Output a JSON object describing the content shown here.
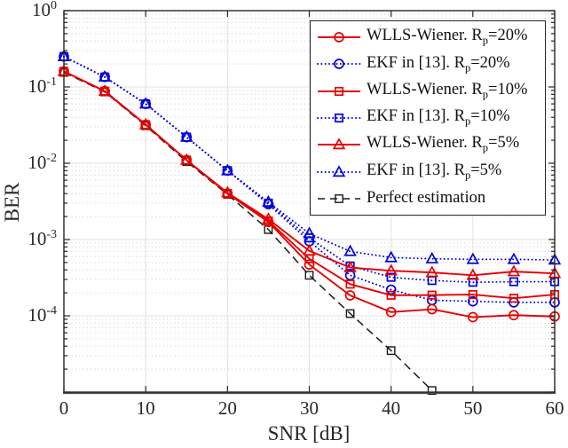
{
  "chart_data": {
    "type": "line",
    "title": "",
    "xlabel": "SNR [dB]",
    "ylabel": "BER",
    "x_axis": {
      "min": 0,
      "max": 60,
      "ticks": [
        0,
        10,
        20,
        30,
        40,
        50,
        60
      ]
    },
    "y_axis": {
      "scale": "log",
      "min": 1e-05,
      "max": 1,
      "tick_exponents": [
        0,
        -1,
        -2,
        -3,
        -4
      ]
    },
    "grid": {
      "major": true,
      "minor_horizontal_dotted": true
    },
    "legend_position": "top-right",
    "x": [
      0,
      5,
      10,
      15,
      20,
      25,
      30,
      35,
      40,
      45,
      50,
      55,
      60
    ],
    "series": [
      {
        "name": "wlls-wiener-rp20",
        "legend": {
          "pre": "WLLS-Wiener. R",
          "sub": "p",
          "post": "=20%"
        },
        "color": "#e60000",
        "line": "solid",
        "marker": "circle",
        "values": [
          0.16,
          0.088,
          0.032,
          0.011,
          0.004,
          0.0017,
          0.00047,
          0.000185,
          0.000112,
          0.000122,
          9.6e-05,
          0.000102,
          9.8e-05
        ]
      },
      {
        "name": "ekf-rp20",
        "legend": {
          "pre": "EKF in [13]. R",
          "sub": "p",
          "post": "=20%"
        },
        "color": "#0000dd",
        "line": "dotted",
        "marker": "circle",
        "values": [
          0.25,
          0.135,
          0.06,
          0.022,
          0.008,
          0.0029,
          0.00095,
          0.00034,
          0.00022,
          0.00016,
          0.000155,
          0.00015,
          0.00015
        ]
      },
      {
        "name": "wlls-wiener-rp10",
        "legend": {
          "pre": "WLLS-Wiener. R",
          "sub": "p",
          "post": "=10%"
        },
        "color": "#e60000",
        "line": "solid",
        "marker": "square",
        "values": [
          0.16,
          0.088,
          0.032,
          0.011,
          0.004,
          0.00175,
          0.00056,
          0.00026,
          0.000186,
          0.000187,
          0.00019,
          0.00017,
          0.00019
        ]
      },
      {
        "name": "ekf-rp10",
        "legend": {
          "pre": "EKF in [13]. R",
          "sub": "p",
          "post": "=10%"
        },
        "color": "#0000dd",
        "line": "dotted",
        "marker": "square",
        "values": [
          0.25,
          0.135,
          0.06,
          0.022,
          0.008,
          0.003,
          0.00105,
          0.00045,
          0.00032,
          0.00029,
          0.000275,
          0.00028,
          0.00028
        ]
      },
      {
        "name": "wlls-wiener-rp5",
        "legend": {
          "pre": "WLLS-Wiener. R",
          "sub": "p",
          "post": "=5%"
        },
        "color": "#e60000",
        "line": "solid",
        "marker": "triangle",
        "values": [
          0.16,
          0.088,
          0.032,
          0.011,
          0.0041,
          0.00185,
          0.00071,
          0.00043,
          0.00039,
          0.00037,
          0.00034,
          0.00038,
          0.00036
        ]
      },
      {
        "name": "ekf-rp5",
        "legend": {
          "pre": "EKF in [13]. R",
          "sub": "p",
          "post": "=5%"
        },
        "color": "#0000dd",
        "line": "dotted",
        "marker": "triangle",
        "values": [
          0.25,
          0.135,
          0.06,
          0.022,
          0.008,
          0.0031,
          0.0012,
          0.0007,
          0.00058,
          0.00056,
          0.00055,
          0.00055,
          0.00054
        ]
      },
      {
        "name": "perfect-estimation",
        "legend": {
          "pre": "Perfect estimation",
          "sub": "",
          "post": ""
        },
        "color": "#1a1a1a",
        "line": "dashed",
        "marker": "square",
        "x": [
          0,
          5,
          10,
          15,
          20,
          25,
          30,
          35,
          40,
          45
        ],
        "values": [
          0.155,
          0.086,
          0.031,
          0.0105,
          0.0039,
          0.00135,
          0.00034,
          0.000107,
          3.5e-05,
          1.05e-05
        ]
      }
    ],
    "style": {
      "grid_major_color": "#e2e2e2",
      "grid_minor_color": "#c9c9c9",
      "box_color": "#262626",
      "baseline_color": "#4d4d4d"
    }
  }
}
